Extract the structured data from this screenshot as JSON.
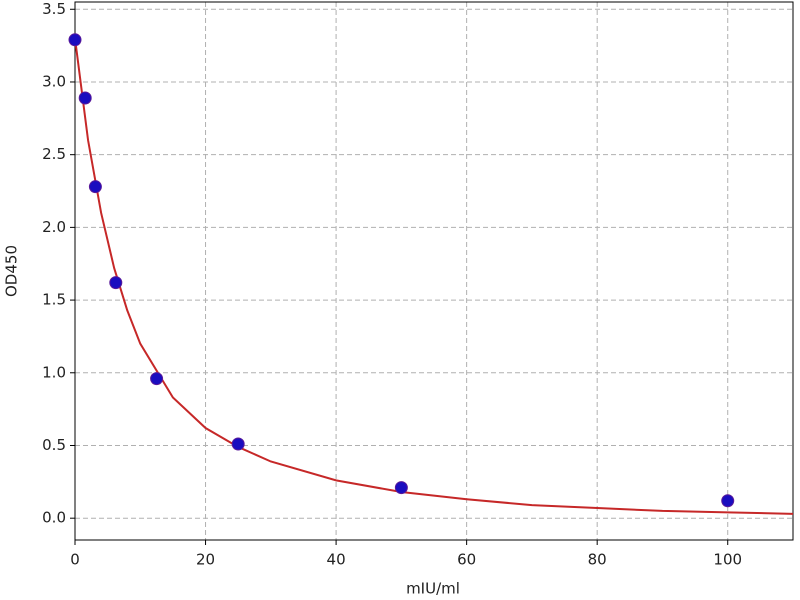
{
  "chart_data": {
    "type": "scatter",
    "xlabel": "mIU/ml",
    "ylabel": "OD450",
    "xlim": [
      0,
      110
    ],
    "ylim": [
      -0.15,
      3.55
    ],
    "xticks": [
      0,
      20,
      40,
      60,
      80,
      100
    ],
    "yticks": [
      {
        "value": 0,
        "label": "0.0"
      },
      0.5,
      {
        "value": 1,
        "label": "1.0"
      },
      1.5,
      {
        "value": 2,
        "label": "2.0"
      },
      2.5,
      {
        "value": 3,
        "label": "3.0"
      },
      3.5
    ],
    "grid": true,
    "series": [
      {
        "type": "line",
        "color": "#c62828",
        "x": [
          0,
          2,
          4,
          6,
          8,
          10,
          15,
          20,
          25,
          30,
          40,
          50,
          60,
          70,
          80,
          90,
          100,
          110
        ],
        "values": [
          3.3,
          2.6,
          2.1,
          1.72,
          1.43,
          1.2,
          0.83,
          0.62,
          0.49,
          0.39,
          0.26,
          0.18,
          0.13,
          0.09,
          0.07,
          0.05,
          0.04,
          0.03
        ]
      },
      {
        "type": "scatter",
        "color": "#1a0dbf",
        "x": [
          0,
          1.5625,
          3.125,
          6.25,
          12.5,
          25,
          50,
          100
        ],
        "values": [
          3.29,
          2.89,
          2.28,
          1.62,
          0.96,
          0.51,
          0.21,
          0.12
        ]
      }
    ]
  }
}
